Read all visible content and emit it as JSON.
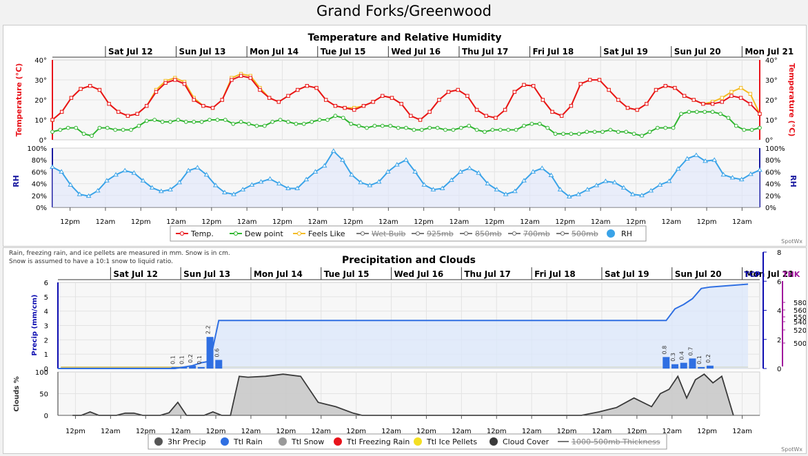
{
  "page_title": "Grand Forks/Greenwood",
  "colors": {
    "temp": "#e8131b",
    "dew": "#2fb52f",
    "feels": "#f4bb22",
    "rh": "#3aa3e8",
    "rain": "#2f6fe2",
    "cloud": "#3a3a3a",
    "precip_axis": "#0b0bb0",
    "thk": "#a0179c"
  },
  "chart_data": [
    {
      "type": "line",
      "title": "Temperature and Relative Humidity",
      "day_labels": [
        "Sat Jul 12",
        "Sun Jul 13",
        "Mon Jul 14",
        "Tue Jul 15",
        "Wed Jul 16",
        "Thu Jul 17",
        "Fri Jul 18",
        "Sat Jul 19",
        "Sun Jul 20",
        "Mon Jul 21"
      ],
      "time_labels": [
        "12pm",
        "12am",
        "12pm",
        "12am",
        "12pm",
        "12am",
        "12pm",
        "12am",
        "12pm",
        "12am",
        "12pm",
        "12am",
        "12pm",
        "12am",
        "12pm",
        "12am",
        "12pm",
        "12am",
        "12pm",
        "12am"
      ],
      "x_unit": "hours from start (3-hourly)",
      "temp_axis": {
        "label": "Temperature (°C)",
        "ticks": [
          "0°",
          "10°",
          "20°",
          "30°",
          "40°"
        ],
        "ylim": [
          0,
          40
        ]
      },
      "rh_axis": {
        "label": "RH",
        "ticks": [
          "0%",
          "20%",
          "40%",
          "60%",
          "80%",
          "100%"
        ],
        "ylim": [
          0,
          100
        ]
      },
      "series": [
        {
          "name": "Temp.",
          "values": [
            10,
            14,
            21,
            25.5,
            27,
            25,
            18,
            14,
            12,
            13,
            17,
            24,
            28.5,
            30,
            28,
            20,
            17,
            16,
            20,
            30,
            32,
            31,
            25,
            21,
            19,
            22,
            25,
            27,
            26,
            20,
            17,
            16,
            15,
            17,
            19,
            22,
            21,
            18,
            12,
            10,
            14,
            20,
            24,
            25,
            22,
            15,
            12,
            11,
            15,
            24,
            27.5,
            27,
            20,
            14,
            12,
            17,
            28,
            30,
            30,
            25,
            20,
            16,
            15,
            18,
            25,
            27,
            26,
            22,
            20,
            18,
            18,
            19,
            22,
            21,
            18,
            13
          ]
        },
        {
          "name": "Dew point",
          "values": [
            4,
            5,
            6,
            6,
            3,
            2,
            6,
            6,
            5,
            5,
            5,
            7,
            9.5,
            10,
            9,
            9,
            10,
            9,
            9,
            9,
            10,
            10,
            10,
            8,
            9,
            8,
            7,
            7,
            9,
            10,
            9,
            8,
            8,
            9,
            10,
            10,
            12,
            11,
            8,
            7,
            6,
            7,
            7,
            7,
            6,
            6,
            5,
            5,
            6,
            6,
            5,
            5,
            6,
            7,
            5,
            4,
            5,
            5,
            5,
            5,
            7,
            8,
            8,
            6,
            3,
            3,
            3,
            3,
            4,
            4,
            4,
            5,
            4,
            4,
            3,
            2,
            4,
            6,
            6,
            6,
            13,
            14,
            14,
            14,
            14,
            13,
            11,
            7,
            5,
            5,
            6
          ]
        },
        {
          "name": "Feels Like",
          "values": [
            10,
            14,
            21,
            25.5,
            27,
            25,
            18,
            14,
            12,
            13,
            17,
            25,
            29.5,
            31,
            29,
            21,
            17,
            16,
            20,
            31,
            33,
            32,
            26,
            21,
            19,
            22,
            25,
            27,
            26,
            20,
            17,
            16,
            16,
            17,
            19,
            22,
            21,
            18,
            12,
            10,
            14,
            20,
            24,
            25,
            22,
            15,
            12,
            11,
            15,
            24,
            27.5,
            27,
            20,
            14,
            12,
            17,
            28,
            30,
            30,
            25,
            20,
            16,
            15,
            18,
            25,
            27,
            26,
            22,
            20,
            18,
            19,
            21,
            24,
            26,
            23,
            13
          ]
        },
        {
          "name": "RH",
          "values": [
            68,
            60,
            38,
            22,
            19,
            28,
            45,
            55,
            62,
            58,
            45,
            33,
            27,
            30,
            42,
            62,
            67,
            55,
            37,
            25,
            22,
            30,
            38,
            43,
            48,
            40,
            32,
            32,
            47,
            60,
            70,
            95,
            80,
            55,
            42,
            37,
            43,
            60,
            72,
            80,
            60,
            38,
            30,
            32,
            46,
            60,
            66,
            58,
            40,
            30,
            22,
            27,
            45,
            60,
            66,
            54,
            30,
            18,
            22,
            30,
            37,
            44,
            42,
            33,
            22,
            20,
            28,
            38,
            44,
            65,
            82,
            88,
            78,
            80,
            55,
            50,
            47,
            56,
            63
          ]
        }
      ],
      "legend": [
        "Temp.",
        "Dew point",
        "Feels Like",
        "Wet Bulb",
        "925mb",
        "850mb",
        "700mb",
        "500mb",
        "RH"
      ],
      "legend_disabled": [
        "Wet Bulb",
        "925mb",
        "850mb",
        "700mb",
        "500mb"
      ],
      "credit": "SpotWx"
    },
    {
      "type": "bar",
      "title": "Precipitation and Clouds",
      "note_line1": "Rain, freezing rain, and ice pellets are measured in mm. Snow is in cm.",
      "note_line2": "Snow is assumed to have a 10:1 snow to liquid ratio.",
      "day_labels": [
        "Sat Jul 12",
        "Sun Jul 13",
        "Mon Jul 14",
        "Tue Jul 15",
        "Wed Jul 16",
        "Thu Jul 17",
        "Fri Jul 18",
        "Sat Jul 19",
        "Sun Jul 20",
        "Mon Jul 21"
      ],
      "time_labels": [
        "12pm",
        "12am",
        "12pm",
        "12am",
        "12pm",
        "12am",
        "12pm",
        "12am",
        "12pm",
        "12am",
        "12pm",
        "12am",
        "12pm",
        "12am",
        "12pm",
        "12am",
        "12pm",
        "12am",
        "12pm",
        "12am"
      ],
      "precip_axis": {
        "label": "Precip (mm/cm)",
        "ticks": [
          "0",
          "1",
          "2",
          "3",
          "4",
          "5",
          "6"
        ],
        "ylim": [
          0,
          6
        ]
      },
      "tcp_axis": {
        "label": "TCP",
        "ticks": [
          "0",
          "2",
          "4",
          "6",
          "8"
        ],
        "ylim": [
          0,
          8
        ]
      },
      "thk_axis": {
        "label": "THK",
        "ticks": [
          "500",
          "520",
          "540",
          "550",
          "560",
          "580"
        ]
      },
      "cloud_axis": {
        "label": "Clouds %",
        "ticks": [
          "0",
          "50",
          "100"
        ],
        "ylim": [
          0,
          100
        ]
      },
      "rain_bars": [
        {
          "t": 40,
          "value": 0.1,
          "label": "0.1"
        },
        {
          "t": 43,
          "value": 0.1,
          "label": "0.1"
        },
        {
          "t": 46,
          "value": 0.2,
          "label": "0.2"
        },
        {
          "t": 49,
          "value": 0.1,
          "label": "0.1"
        },
        {
          "t": 52,
          "value": 2.2,
          "label": "2.2"
        },
        {
          "t": 55,
          "value": 0.6,
          "label": "0.6"
        },
        {
          "t": 208,
          "value": 0.8,
          "label": "0.8"
        },
        {
          "t": 211,
          "value": 0.3,
          "label": "0.3"
        },
        {
          "t": 214,
          "value": 0.4,
          "label": "0.4"
        },
        {
          "t": 217,
          "value": 0.7,
          "label": "0.7"
        },
        {
          "t": 220,
          "value": 0.1,
          "label": "0.1"
        },
        {
          "t": 223,
          "value": 0.2,
          "label": "0.2"
        }
      ],
      "total_precip": {
        "t": [
          0,
          40,
          43,
          46,
          49,
          52,
          55,
          208,
          211,
          214,
          217,
          220,
          223,
          236
        ],
        "values": [
          0,
          0,
          0.1,
          0.2,
          0.4,
          0.5,
          3.3,
          3.3,
          4.1,
          4.4,
          4.8,
          5.5,
          5.6,
          5.8
        ]
      },
      "cloud_cover": {
        "t": [
          0,
          3,
          6,
          9,
          12,
          15,
          18,
          21,
          24,
          27,
          30,
          33,
          36,
          39,
          42,
          45,
          48,
          51,
          54,
          57,
          60,
          66,
          72,
          78,
          84,
          90,
          96,
          99,
          102,
          105,
          108,
          111,
          114,
          117,
          120,
          123,
          126,
          129,
          132,
          135,
          138,
          141,
          144,
          147,
          150,
          153,
          156,
          159,
          162,
          168,
          174,
          180,
          186,
          192,
          198,
          201,
          204,
          207,
          210,
          213,
          216,
          219,
          222,
          226
        ],
        "values": [
          0,
          0,
          8,
          0,
          0,
          0,
          5,
          5,
          0,
          0,
          0,
          6,
          30,
          0,
          0,
          0,
          8,
          0,
          0,
          90,
          88,
          90,
          95,
          90,
          30,
          20,
          5,
          0,
          0,
          0,
          0,
          0,
          0,
          0,
          0,
          0,
          0,
          0,
          0,
          0,
          0,
          0,
          0,
          0,
          0,
          0,
          0,
          0,
          0,
          0,
          0,
          8,
          18,
          40,
          20,
          50,
          60,
          90,
          40,
          82,
          95,
          75,
          90,
          0
        ]
      },
      "legend": [
        "3hr Precip",
        "Ttl Rain",
        "Ttl Snow",
        "Ttl Freezing Rain",
        "Ttl Ice Pellets",
        "Cloud Cover",
        "1000-500mb Thickness"
      ],
      "legend_disabled": [
        "1000-500mb Thickness"
      ],
      "credit": "SpotWx"
    }
  ]
}
